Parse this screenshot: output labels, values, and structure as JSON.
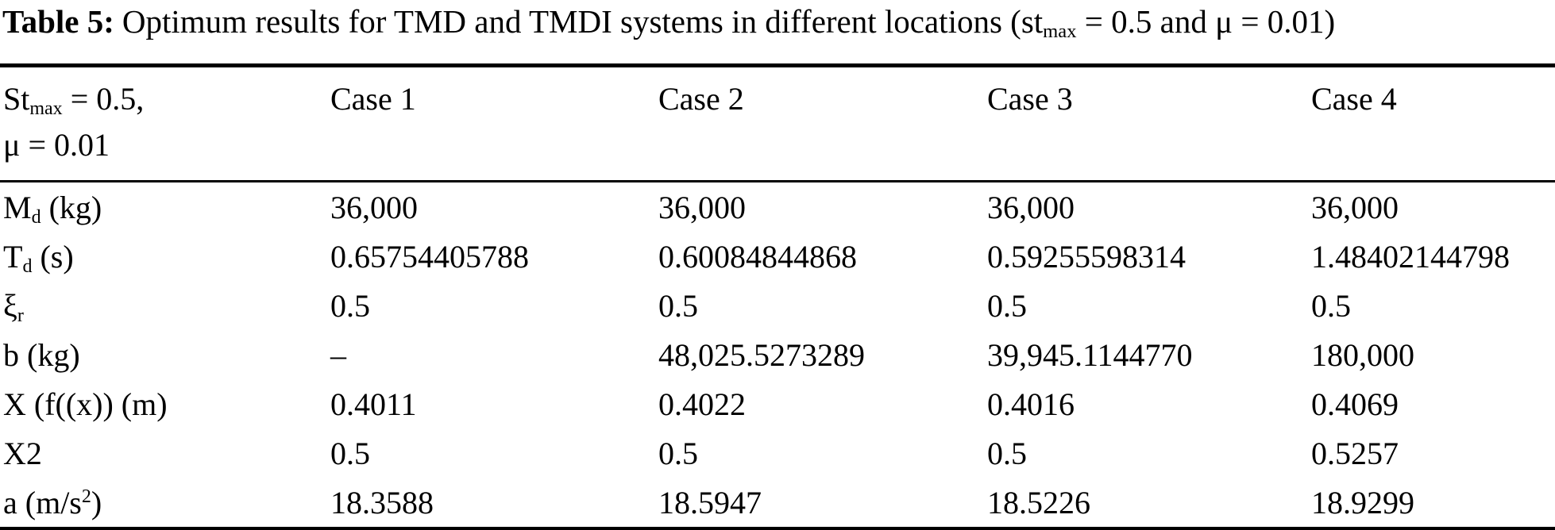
{
  "title": {
    "bold": "Table 5:",
    "text": "Optimum results for TMD and TMDI systems in different locations (st_{max} = 0.5 and μ = 0.01)"
  },
  "table": {
    "header": {
      "col0_line1": "St_{max} = 0.5,",
      "col0_line2": "μ = 0.01",
      "cases": [
        "Case 1",
        "Case 2",
        "Case 3",
        "Case 4"
      ]
    },
    "rows": [
      {
        "label": "M_{d} (kg)",
        "values": [
          "36,000",
          "36,000",
          "36,000",
          "36,000"
        ]
      },
      {
        "label": "T_{d} (s)",
        "values": [
          "0.65754405788",
          "0.60084844868",
          "0.59255598314",
          "1.48402144798"
        ]
      },
      {
        "label": "ξ_{r}",
        "values": [
          "0.5",
          "0.5",
          "0.5",
          "0.5"
        ]
      },
      {
        "label": "b (kg)",
        "values": [
          "–",
          "48,025.5273289",
          "39,945.1144770",
          "180,000"
        ]
      },
      {
        "label": "X (f((x)) (m)",
        "values": [
          "0.4011",
          "0.4022",
          "0.4016",
          "0.4069"
        ]
      },
      {
        "label": "X2",
        "values": [
          "0.5",
          "0.5",
          "0.5",
          "0.5257"
        ]
      },
      {
        "label": "a (m/s^{2})",
        "values": [
          "18.3588",
          "18.5947",
          "18.5226",
          "18.9299"
        ]
      }
    ]
  },
  "colors": {
    "text": "#000000",
    "background": "#ffffff",
    "rule": "#000000"
  }
}
